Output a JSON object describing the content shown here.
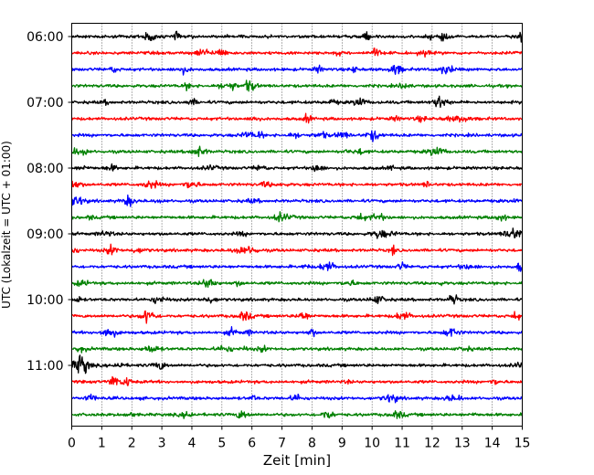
{
  "chart_data": {
    "type": "line",
    "title": "",
    "xlabel": "Zeit  [min]",
    "ylabel": "UTC (Lokalzeit = UTC + 01:00)",
    "xlim": [
      0,
      15
    ],
    "x_ticks": [
      "0",
      "1",
      "2",
      "3",
      "4",
      "5",
      "6",
      "7",
      "8",
      "9",
      "10",
      "11",
      "12",
      "13",
      "14",
      "15"
    ],
    "y_ticks": [
      "06:00",
      "07:00",
      "08:00",
      "09:00",
      "10:00",
      "11:00"
    ],
    "grid": "vertical-dotted",
    "legend": "none",
    "trace_colors": [
      "#000000",
      "#ff0000",
      "#0000ff",
      "#008000"
    ],
    "traces_per_hour": 4,
    "trace_minutes": 15,
    "start_time": "06:00",
    "end_time": "11:45"
  }
}
